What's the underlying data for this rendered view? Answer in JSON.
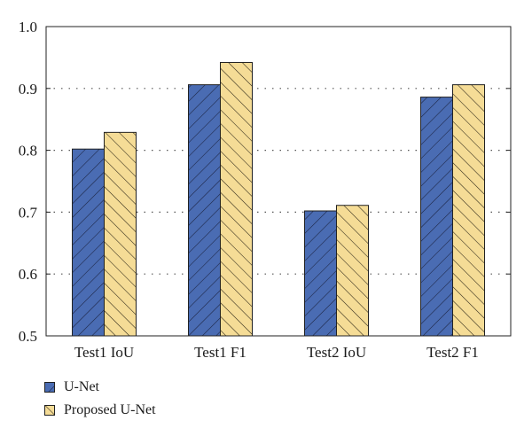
{
  "chart_data": {
    "type": "bar",
    "categories": [
      "Test1 IoU",
      "Test1 F1",
      "Test2 IoU",
      "Test2 F1"
    ],
    "series": [
      {
        "name": "U-Net",
        "values": [
          0.802,
          0.906,
          0.702,
          0.886
        ],
        "color": "#4a6cb3",
        "hatch": "forward-diagonal"
      },
      {
        "name": "Proposed U-Net",
        "values": [
          0.829,
          0.942,
          0.711,
          0.906
        ],
        "color": "#f5dc96",
        "hatch": "backward-diagonal"
      }
    ],
    "yticks": [
      "0.5",
      "0.6",
      "0.7",
      "0.8",
      "0.9",
      "1.0"
    ],
    "ylim": [
      0.5,
      1.0
    ],
    "grid": "horizontal dotted",
    "legend_position": "bottom-left"
  }
}
